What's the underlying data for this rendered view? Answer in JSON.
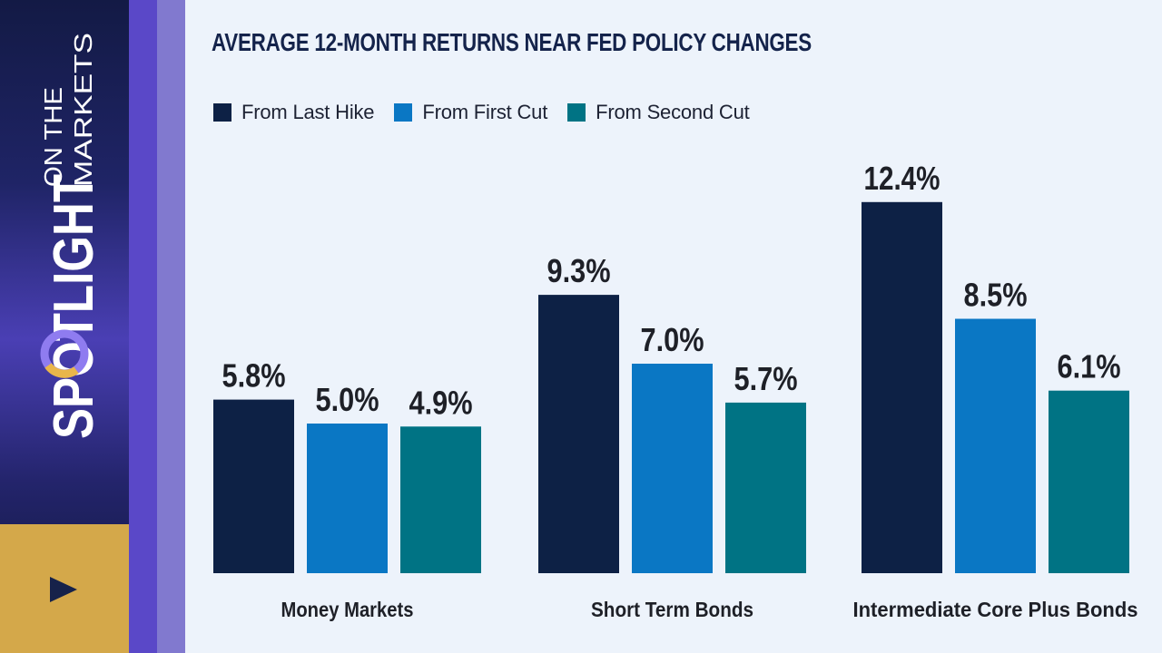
{
  "brand": {
    "word_big": "SPOTLIGHT",
    "word_line1": "ON THE",
    "word_line2": "MARKETS"
  },
  "play_icon": "play-icon",
  "colors": {
    "title": "#14234b",
    "last_hike": "#0d2145",
    "first_cut": "#0a77c4",
    "second_cut": "#007384",
    "gold": "#d4a84a"
  },
  "chart_data": {
    "type": "bar",
    "title": "AVERAGE 12-MONTH RETURNS NEAR FED POLICY CHANGES",
    "categories": [
      "Money Markets",
      "Short Term Bonds",
      "Intermediate Core Plus Bonds"
    ],
    "series": [
      {
        "name": "From Last Hike",
        "values": [
          5.8,
          9.3,
          12.4
        ],
        "labels": [
          "5.8%",
          "9.3%",
          "12.4%"
        ],
        "color": "#0d2145"
      },
      {
        "name": "From First Cut",
        "values": [
          5.0,
          7.0,
          8.5
        ],
        "labels": [
          "5.0%",
          "7.0%",
          "8.5%"
        ],
        "color": "#0a77c4"
      },
      {
        "name": "From Second Cut",
        "values": [
          4.9,
          5.7,
          6.1
        ],
        "labels": [
          "4.9%",
          "5.7%",
          "6.1%"
        ],
        "color": "#007384"
      }
    ],
    "ylim": [
      0,
      16
    ],
    "xlabel": "",
    "ylabel": "",
    "grid": false,
    "legend": "top-left"
  }
}
